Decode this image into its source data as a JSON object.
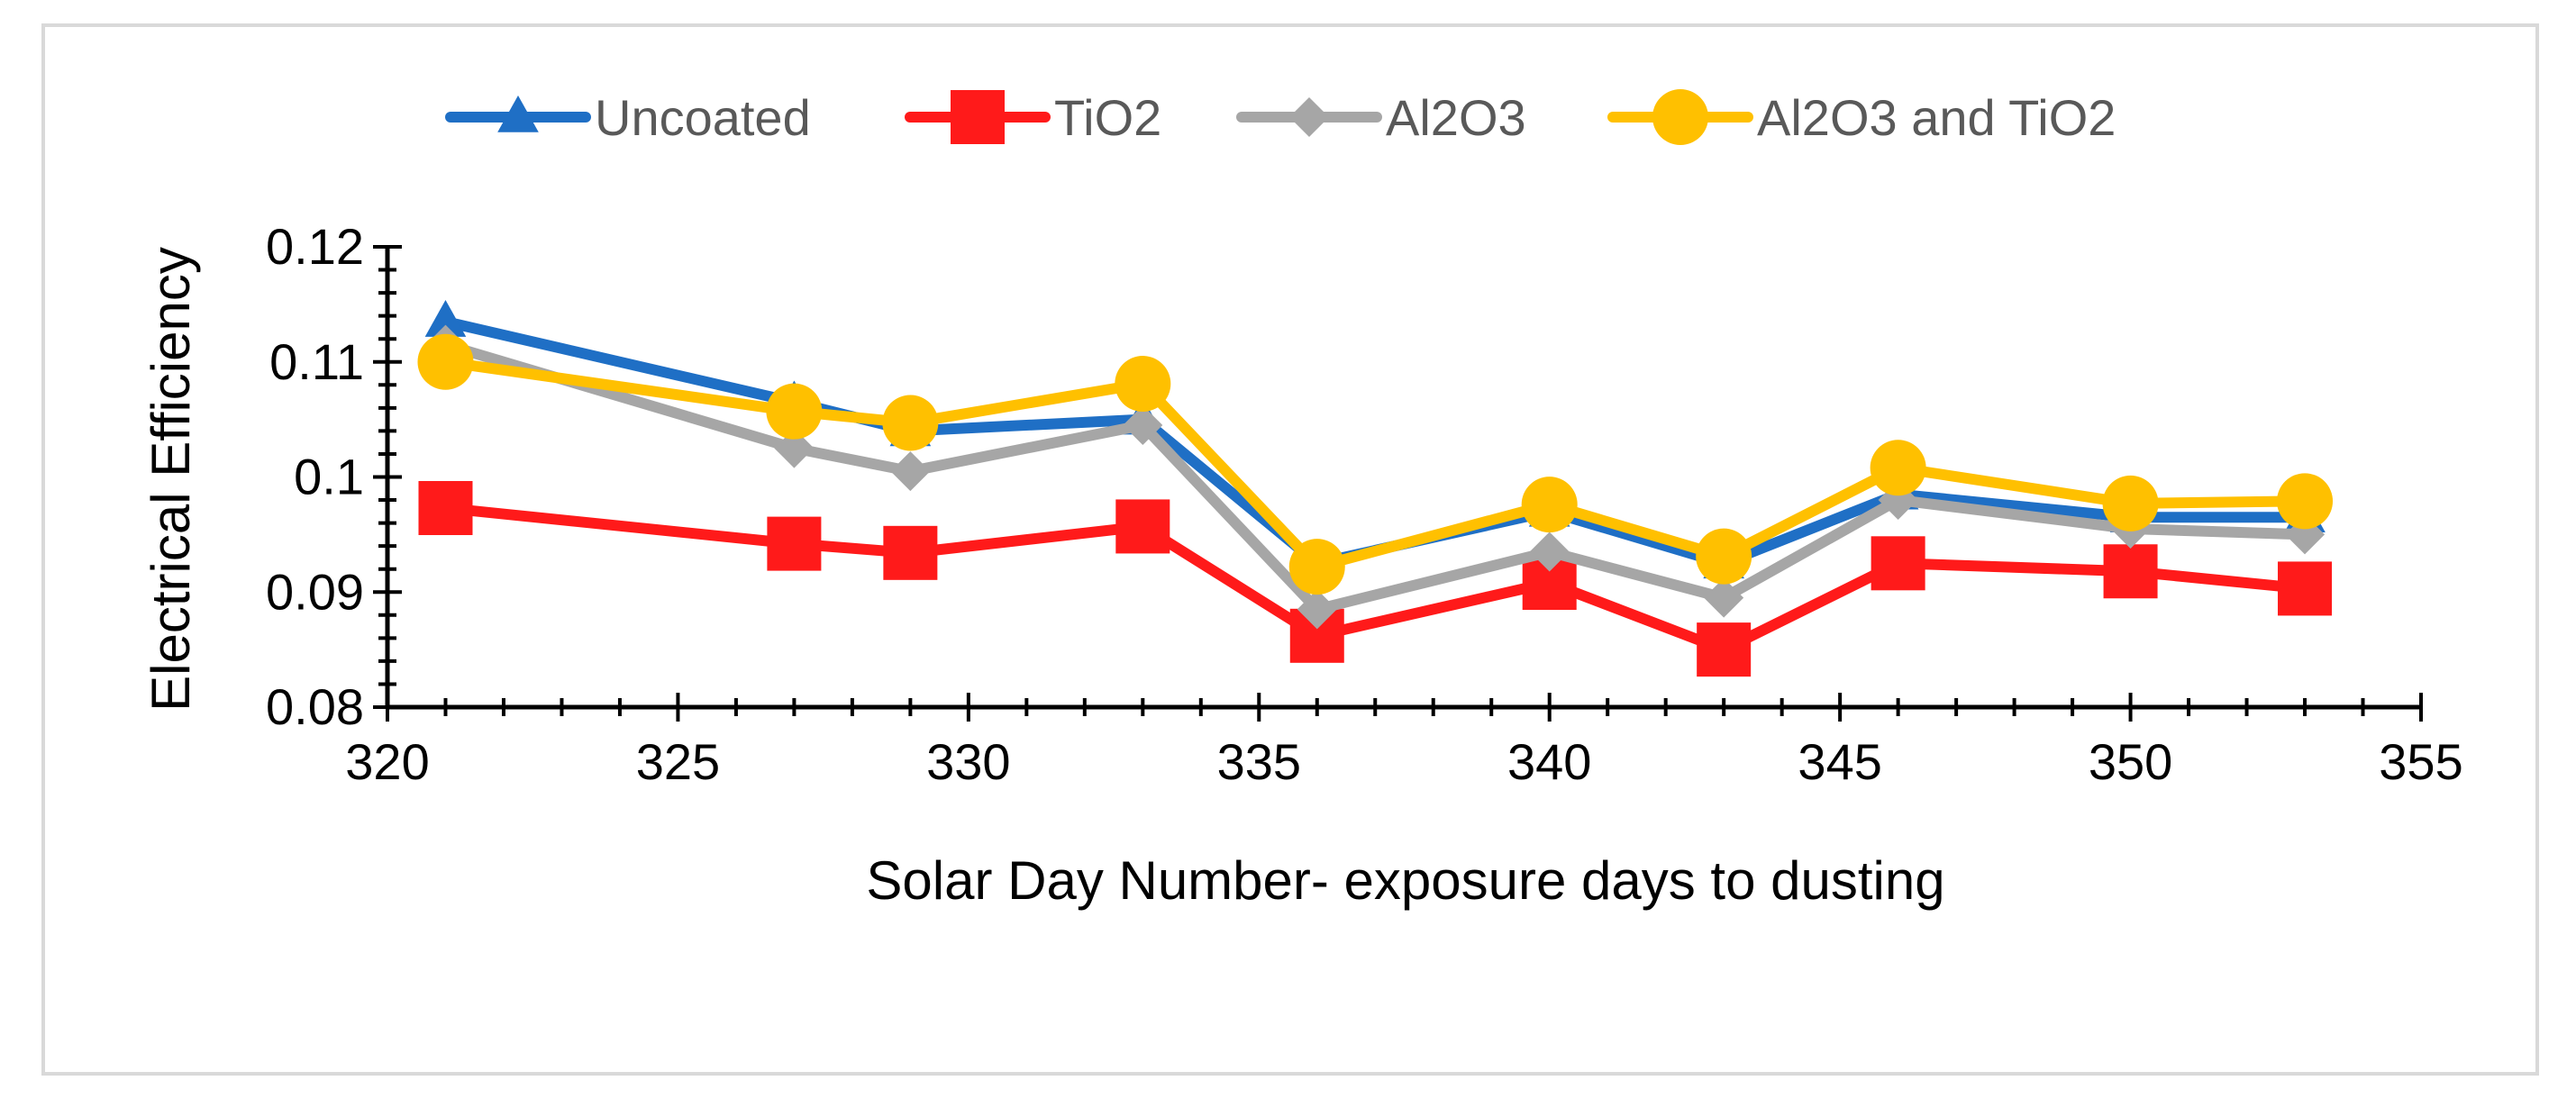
{
  "chart_data": {
    "type": "line",
    "title": "",
    "xlabel": "Solar Day Number- exposure days to dusting",
    "ylabel": "Electrical Efficiency",
    "xlim": [
      320,
      355
    ],
    "ylim": [
      0.08,
      0.12
    ],
    "x_ticks": [
      320,
      325,
      330,
      335,
      340,
      345,
      350,
      355
    ],
    "x_tick_labels": [
      "320",
      "325",
      "330",
      "335",
      "340",
      "345",
      "350",
      "355"
    ],
    "y_ticks": [
      0.08,
      0.09,
      0.1,
      0.11,
      0.12
    ],
    "y_tick_labels": [
      "0.08",
      "0.09",
      "0.1",
      "0.11",
      "0.12"
    ],
    "grid": false,
    "legend_position": "top",
    "x": [
      321,
      327,
      329,
      333,
      336,
      340,
      343,
      346,
      350,
      353
    ],
    "series": [
      {
        "name": "Uncoated",
        "color": "#1f6fc5",
        "marker": "triangle",
        "values": [
          0.1135,
          0.1065,
          0.104,
          0.105,
          0.0925,
          0.097,
          0.0925,
          0.0985,
          0.0965,
          0.0965
        ]
      },
      {
        "name": "TiO2",
        "color": "#ff1a1a",
        "marker": "square",
        "values": [
          0.0973,
          0.0942,
          0.0934,
          0.0957,
          0.0862,
          0.0908,
          0.085,
          0.0925,
          0.0918,
          0.0903
        ]
      },
      {
        "name": "Al2O3",
        "color": "#a6a6a6",
        "marker": "diamond",
        "values": [
          0.1115,
          0.1025,
          0.1005,
          0.1045,
          0.0885,
          0.0935,
          0.0895,
          0.098,
          0.0955,
          0.095
        ]
      },
      {
        "name": "Al2O3 and TiO2",
        "color": "#ffc000",
        "marker": "circle",
        "values": [
          0.11,
          0.1057,
          0.1047,
          0.1081,
          0.0922,
          0.0976,
          0.0931,
          0.1008,
          0.0977,
          0.0979
        ]
      }
    ]
  }
}
